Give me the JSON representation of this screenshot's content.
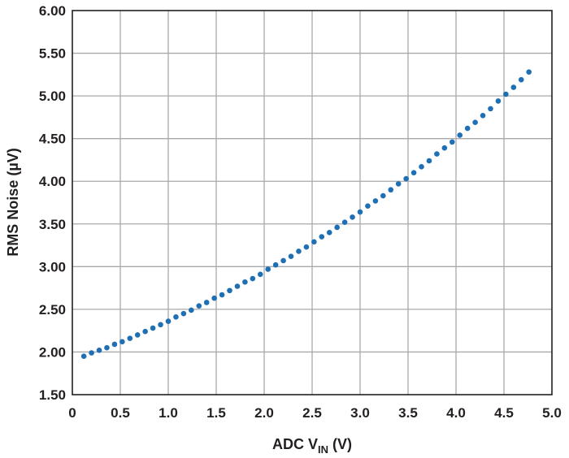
{
  "chart_data": {
    "type": "scatter",
    "xlabel": "ADC V",
    "xlabel_subscript": "IN",
    "xlabel_suffix": " (V)",
    "ylabel": "RMS Noise (µV)",
    "xlim": [
      0,
      5.0
    ],
    "ylim": [
      1.5,
      6.0
    ],
    "grid": true,
    "marker_color": "#1f6fb5",
    "x_ticks": [
      "0",
      "0.5",
      "1.0",
      "1.5",
      "2.0",
      "2.5",
      "3.0",
      "3.5",
      "4.0",
      "4.5",
      "5.0"
    ],
    "y_ticks": [
      "1.50",
      "2.00",
      "2.50",
      "3.00",
      "3.50",
      "4.00",
      "4.50",
      "5.00",
      "5.50",
      "6.00"
    ],
    "x": [
      0.12,
      0.2,
      0.28,
      0.36,
      0.44,
      0.52,
      0.6,
      0.68,
      0.76,
      0.84,
      0.92,
      1.0,
      1.08,
      1.16,
      1.24,
      1.32,
      1.4,
      1.48,
      1.56,
      1.64,
      1.72,
      1.8,
      1.88,
      1.96,
      2.04,
      2.12,
      2.2,
      2.28,
      2.36,
      2.44,
      2.52,
      2.6,
      2.68,
      2.76,
      2.84,
      2.92,
      3.0,
      3.08,
      3.16,
      3.24,
      3.32,
      3.4,
      3.48,
      3.56,
      3.64,
      3.72,
      3.8,
      3.88,
      3.96,
      4.04,
      4.12,
      4.2,
      4.28,
      4.36,
      4.44,
      4.52,
      4.6,
      4.68,
      4.76
    ],
    "y": [
      1.95,
      1.99,
      2.02,
      2.05,
      2.09,
      2.12,
      2.16,
      2.2,
      2.24,
      2.28,
      2.32,
      2.36,
      2.41,
      2.45,
      2.49,
      2.54,
      2.58,
      2.63,
      2.67,
      2.72,
      2.77,
      2.82,
      2.86,
      2.91,
      2.97,
      3.02,
      3.07,
      3.12,
      3.18,
      3.23,
      3.29,
      3.35,
      3.4,
      3.46,
      3.52,
      3.58,
      3.64,
      3.71,
      3.77,
      3.83,
      3.9,
      3.97,
      4.03,
      4.1,
      4.17,
      4.24,
      4.32,
      4.39,
      4.46,
      4.54,
      4.62,
      4.69,
      4.77,
      4.85,
      4.94,
      5.02,
      5.1,
      5.19,
      5.28
    ]
  }
}
